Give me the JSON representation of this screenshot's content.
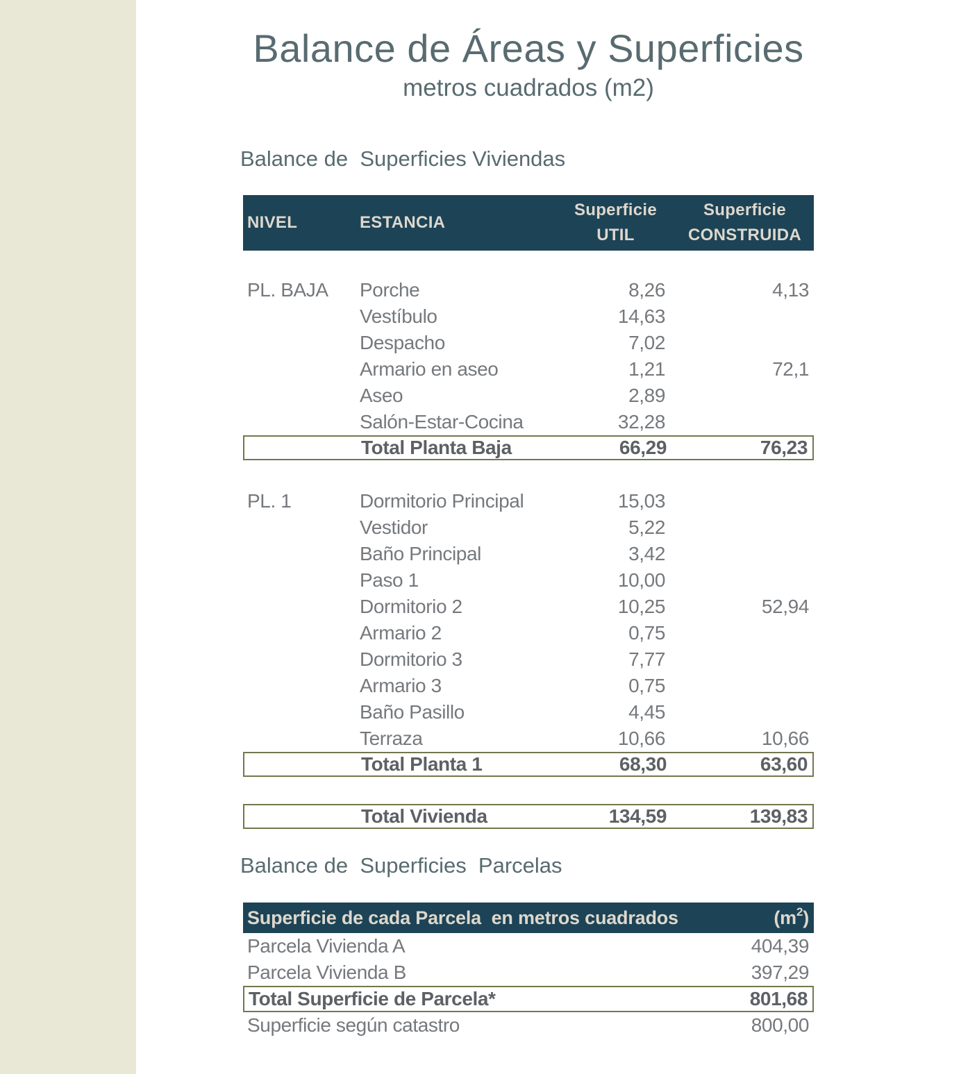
{
  "page": {
    "title": "Balance de Áreas y Superficies",
    "subtitle": "metros cuadrados (m2)"
  },
  "sections": {
    "viviendas": "Balance de  Superficies Viviendas",
    "parcelas": "Balance de  Superficies  Parcelas"
  },
  "viviendas_table": {
    "headers": {
      "nivel": "NIVEL",
      "estancia": "ESTANCIA",
      "util_top": "Superficie",
      "util_bottom": "UTIL",
      "construida_top": "Superficie",
      "construida_bottom": "CONSTRUIDA"
    },
    "groups": [
      {
        "nivel": "PL. BAJA",
        "rows": [
          {
            "estancia": "Porche",
            "util": "8,26",
            "construida": "4,13"
          },
          {
            "estancia": "Vestíbulo",
            "util": "14,63",
            "construida": ""
          },
          {
            "estancia": "Despacho",
            "util": "7,02",
            "construida": ""
          },
          {
            "estancia": "Armario en aseo",
            "util": "1,21",
            "construida": "72,1"
          },
          {
            "estancia": "Aseo",
            "util": "2,89",
            "construida": ""
          },
          {
            "estancia": "Salón-Estar-Cocina",
            "util": "32,28",
            "construida": ""
          }
        ],
        "total": {
          "label": "Total Planta Baja",
          "util": "66,29",
          "construida": "76,23"
        }
      },
      {
        "nivel": "PL. 1",
        "rows": [
          {
            "estancia": "Dormitorio Principal",
            "util": "15,03",
            "construida": ""
          },
          {
            "estancia": "Vestidor",
            "util": "5,22",
            "construida": ""
          },
          {
            "estancia": "Baño Principal",
            "util": "3,42",
            "construida": ""
          },
          {
            "estancia": "Paso 1",
            "util": "10,00",
            "construida": ""
          },
          {
            "estancia": "Dormitorio 2",
            "util": "10,25",
            "construida": "52,94"
          },
          {
            "estancia": "Armario 2",
            "util": "0,75",
            "construida": ""
          },
          {
            "estancia": "Dormitorio 3",
            "util": "7,77",
            "construida": ""
          },
          {
            "estancia": "Armario 3",
            "util": "0,75",
            "construida": ""
          },
          {
            "estancia": "Baño Pasillo",
            "util": "4,45",
            "construida": ""
          },
          {
            "estancia": "Terraza",
            "util": "10,66",
            "construida": "10,66"
          }
        ],
        "total": {
          "label": "Total Planta 1",
          "util": "68,30",
          "construida": "63,60"
        }
      }
    ],
    "grand_total": {
      "label": "Total Vivienda",
      "util": "134,59",
      "construida": "139,83"
    }
  },
  "parcelas_table": {
    "header": {
      "label": "Superficie de cada Parcela  en metros cuadrados",
      "unit_open": "(m",
      "unit_sup": "2",
      "unit_close": ")"
    },
    "rows": [
      {
        "label": "Parcela Vivienda A",
        "value": "404,39"
      },
      {
        "label": "Parcela Vivienda B",
        "value": "397,29"
      },
      {
        "label": "Total Superficie de Parcela*",
        "value": "801,68"
      },
      {
        "label": "Superficie según catastro",
        "value": "800,00"
      }
    ]
  },
  "colors": {
    "header_bg": "#1d4356",
    "header_text": "#ddd8cd",
    "border_olive": "#73774d",
    "stripe": "#e9e7d6",
    "title": "#586b70",
    "body_text": "#75797d",
    "bold_text": "#5d6165"
  }
}
